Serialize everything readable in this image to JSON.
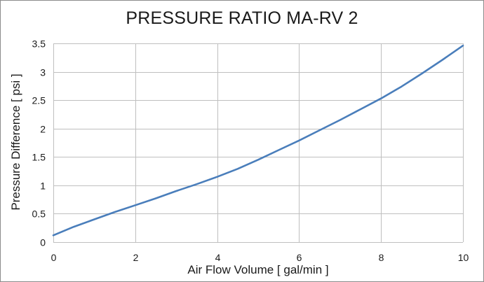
{
  "chart_data": {
    "type": "line",
    "title": "PRESSURE RATIO MA-RV 2",
    "xlabel": "Air Flow Volume [ gal/min ]",
    "ylabel": "Pressure Difference [ psi ]",
    "xlim": [
      0,
      10
    ],
    "ylim": [
      0,
      3.5
    ],
    "xticks": [
      0,
      2,
      4,
      6,
      8,
      10
    ],
    "yticks": [
      0,
      0.5,
      1,
      1.5,
      2,
      2.5,
      3,
      3.5
    ],
    "grid": true,
    "legend": "none",
    "series": [
      {
        "color": "#4a7ebb",
        "x": [
          0,
          0.5,
          1,
          1.5,
          2,
          2.5,
          3,
          3.5,
          4,
          4.5,
          5,
          5.5,
          6,
          6.5,
          7,
          7.5,
          8,
          8.5,
          9,
          9.5,
          10
        ],
        "y": [
          0.12,
          0.27,
          0.4,
          0.53,
          0.65,
          0.77,
          0.9,
          1.02,
          1.15,
          1.29,
          1.45,
          1.62,
          1.79,
          1.97,
          2.15,
          2.34,
          2.53,
          2.74,
          2.97,
          3.21,
          3.46
        ]
      }
    ]
  }
}
